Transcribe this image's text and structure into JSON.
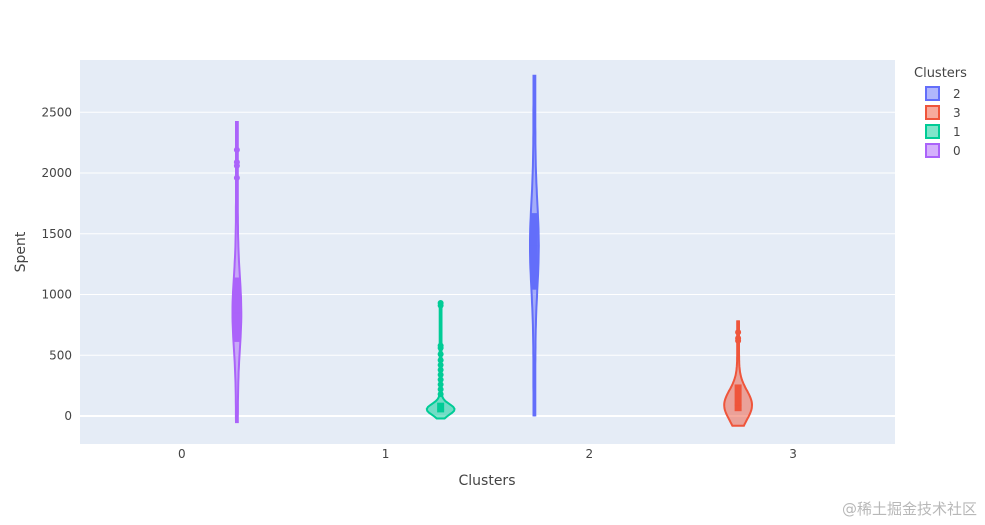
{
  "chart_data": {
    "type": "violin",
    "xlabel": "Clusters",
    "ylabel": "Spent",
    "categories": [
      "0",
      "1",
      "2",
      "3"
    ],
    "ylim": [
      -230,
      2930
    ],
    "yticks": [
      0,
      500,
      1000,
      1500,
      2000,
      2500
    ],
    "grid": true,
    "legend": {
      "title": "Clusters",
      "placement": "right"
    },
    "series": [
      {
        "name": "2",
        "category": "2",
        "color": "#636efa",
        "offset": -1,
        "min": 5,
        "q1": 1040,
        "median": 1400,
        "q3": 1670,
        "max": 2800,
        "outliers": []
      },
      {
        "name": "3",
        "category": "3",
        "color": "#ef553b",
        "offset": -1,
        "min": -80,
        "q1": 40,
        "median": 90,
        "q3": 260,
        "max": 780,
        "outliers": [
          620,
          640,
          690
        ]
      },
      {
        "name": "1",
        "category": "1",
        "color": "#00cc96",
        "offset": 1,
        "min": -20,
        "q1": 30,
        "median": 55,
        "q3": 110,
        "max": 930,
        "outliers": [
          180,
          220,
          260,
          300,
          340,
          380,
          420,
          460,
          510,
          560,
          580,
          910,
          930
        ]
      },
      {
        "name": "0",
        "category": "0",
        "color": "#ab63fa",
        "offset": 1,
        "min": -50,
        "q1": 610,
        "median": 850,
        "q3": 1140,
        "max": 2420,
        "outliers": [
          1960,
          2060,
          2090,
          2190
        ]
      }
    ]
  },
  "watermark": "@稀土掘金技术社区"
}
